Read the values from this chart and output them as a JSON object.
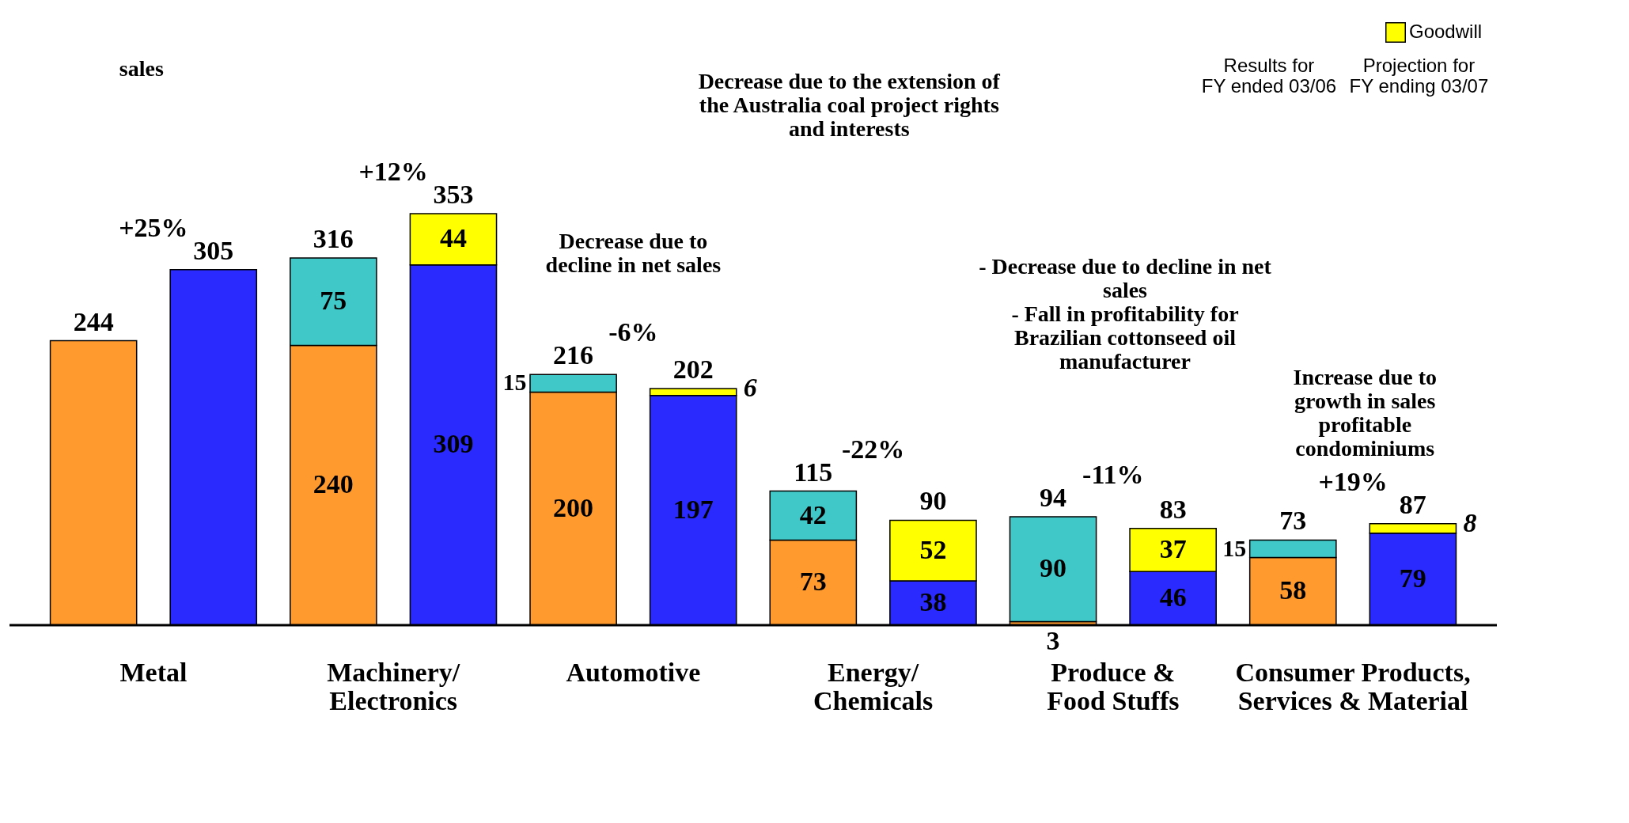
{
  "chart_data": {
    "type": "bar",
    "stacked": true,
    "data_labels": true,
    "legend": "top right",
    "categories": [
      "Metal",
      null,
      "Machinery/\nElectronics",
      null,
      "Automotive",
      null,
      "Energy/\nChemicals",
      null,
      "Produce &\nFood Stuffs",
      null,
      "Consumer Products,\nServices & Material",
      null
    ],
    "series": [
      {
        "color": "#ff9a2e",
        "values": [
          244,
          null,
          240,
          null,
          200,
          null,
          73,
          null,
          3,
          null,
          58,
          null
        ],
        "value_labels": [
          null,
          null,
          "240",
          null,
          "200",
          null,
          "73",
          null,
          "3",
          null,
          "58",
          null
        ]
      },
      {
        "color": "#40c8c8",
        "values": [
          null,
          null,
          75,
          null,
          15,
          null,
          42,
          null,
          90,
          null,
          15,
          null
        ]
      },
      {
        "color": "#2a2aff",
        "values": [
          null,
          305,
          null,
          309,
          null,
          197,
          null,
          38,
          null,
          46,
          null,
          79
        ],
        "value_labels": [
          null,
          null,
          null,
          "309",
          null,
          "197",
          null,
          "38",
          null,
          "46",
          null,
          "79"
        ]
      },
      {
        "name": "Goodwill",
        "color": "#ffff00",
        "values": [
          null,
          null,
          null,
          44,
          null,
          6,
          null,
          52,
          null,
          37,
          null,
          8
        ]
      }
    ],
    "totals": [
      "244",
      "305",
      "316",
      "353",
      "216",
      "202",
      "115",
      "90",
      "94",
      "83",
      "73",
      "87"
    ],
    "annotations": [
      "+25%",
      "+12%",
      "-6%",
      "-22%",
      "-11%",
      "+19%",
      "sales",
      "Decrease due to\ndecline in net sales",
      "Decrease due to the extension of\nthe Australia coal project rights\nand interests",
      "- Decrease due to decline in net\n  sales\n- Fall in profitability for\n  Brazilian cottonseed oil\n  manufacturer",
      "Increase due to\ngrowth in sales\nprofitable\ncondominiums",
      "Results for\nFY ended 03/06",
      "Projection for\nFY ending 03/07"
    ]
  }
}
